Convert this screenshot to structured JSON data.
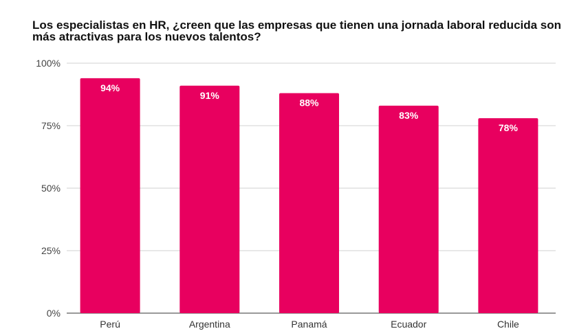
{
  "chart_data": {
    "type": "bar",
    "title": "Los especialistas en HR, ¿creen que las empresas que tienen una jornada laboral reducida son más atractivas para los nuevos talentos?",
    "xlabel": "",
    "ylabel": "",
    "categories": [
      "Perú",
      "Argentina",
      "Panamá",
      "Ecuador",
      "Chile"
    ],
    "values": [
      94,
      91,
      88,
      83,
      78
    ],
    "data_labels": [
      "94%",
      "91%",
      "88%",
      "83%",
      "78%"
    ],
    "ylim": [
      0,
      100
    ],
    "yticks": [
      0,
      25,
      50,
      75,
      100
    ],
    "ytick_labels": [
      "0%",
      "25%",
      "50%",
      "75%",
      "100%"
    ],
    "grid": true,
    "bar_color": "#e8005f",
    "label_color": "#ffffff"
  }
}
